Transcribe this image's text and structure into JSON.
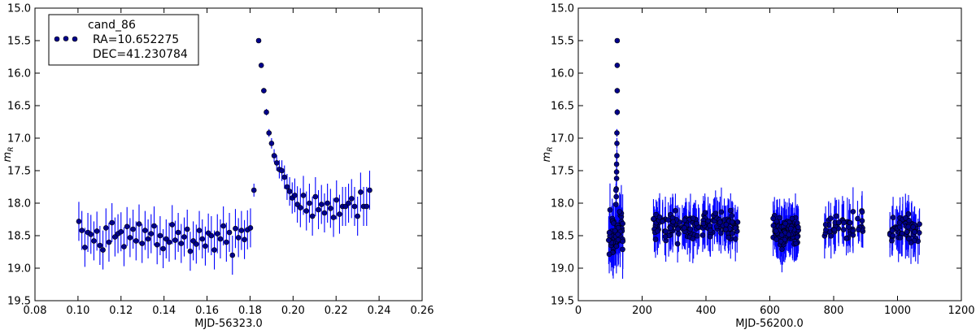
{
  "chart_data": [
    {
      "type": "scatter",
      "errorbars": true,
      "xlabel": "MJD-56323.0",
      "ylabel": "m",
      "ylabel_sub": "R",
      "xlim": [
        0.08,
        0.26
      ],
      "ylim": [
        19.5,
        15.0
      ],
      "y_inverted": true,
      "xticks": [
        "0.08",
        "0.10",
        "0.12",
        "0.14",
        "0.16",
        "0.18",
        "0.20",
        "0.22",
        "0.24",
        "0.26"
      ],
      "yticks": [
        "15.0",
        "15.5",
        "16.0",
        "16.5",
        "17.0",
        "17.5",
        "18.0",
        "18.5",
        "19.0",
        "19.5"
      ],
      "grid": false,
      "legend": {
        "placement": "top-left",
        "lines": [
          "cand_86",
          "RA=10.652275",
          "DEC=41.230784"
        ]
      },
      "marker_color": "#00008b",
      "errorbar_color": "#0000ff",
      "points": [
        [
          0.1004,
          18.28,
          0.3
        ],
        [
          0.1018,
          18.42,
          0.3
        ],
        [
          0.1032,
          18.68,
          0.3
        ],
        [
          0.1046,
          18.45,
          0.3
        ],
        [
          0.106,
          18.48,
          0.3
        ],
        [
          0.1074,
          18.58,
          0.3
        ],
        [
          0.1088,
          18.43,
          0.3
        ],
        [
          0.1102,
          18.65,
          0.3
        ],
        [
          0.1116,
          18.72,
          0.3
        ],
        [
          0.113,
          18.38,
          0.3
        ],
        [
          0.1144,
          18.6,
          0.3
        ],
        [
          0.1158,
          18.3,
          0.3
        ],
        [
          0.1172,
          18.52,
          0.3
        ],
        [
          0.1186,
          18.47,
          0.3
        ],
        [
          0.12,
          18.44,
          0.3
        ],
        [
          0.1214,
          18.67,
          0.3
        ],
        [
          0.1228,
          18.36,
          0.3
        ],
        [
          0.1242,
          18.53,
          0.3
        ],
        [
          0.1256,
          18.4,
          0.3
        ],
        [
          0.127,
          18.58,
          0.3
        ],
        [
          0.1284,
          18.32,
          0.3
        ],
        [
          0.1298,
          18.62,
          0.3
        ],
        [
          0.1312,
          18.42,
          0.3
        ],
        [
          0.1326,
          18.55,
          0.3
        ],
        [
          0.134,
          18.47,
          0.3
        ],
        [
          0.1354,
          18.35,
          0.3
        ],
        [
          0.1368,
          18.64,
          0.3
        ],
        [
          0.1382,
          18.5,
          0.3
        ],
        [
          0.1396,
          18.7,
          0.3
        ],
        [
          0.141,
          18.55,
          0.3
        ],
        [
          0.1424,
          18.6,
          0.3
        ],
        [
          0.1438,
          18.33,
          0.3
        ],
        [
          0.1452,
          18.57,
          0.3
        ],
        [
          0.1466,
          18.45,
          0.3
        ],
        [
          0.148,
          18.62,
          0.3
        ],
        [
          0.1494,
          18.52,
          0.3
        ],
        [
          0.1508,
          18.4,
          0.3
        ],
        [
          0.1522,
          18.74,
          0.3
        ],
        [
          0.1536,
          18.58,
          0.3
        ],
        [
          0.155,
          18.63,
          0.3
        ],
        [
          0.1564,
          18.42,
          0.3
        ],
        [
          0.1578,
          18.55,
          0.3
        ],
        [
          0.1592,
          18.66,
          0.3
        ],
        [
          0.1606,
          18.46,
          0.3
        ],
        [
          0.162,
          18.5,
          0.3
        ],
        [
          0.1634,
          18.72,
          0.3
        ],
        [
          0.1648,
          18.47,
          0.3
        ],
        [
          0.1662,
          18.55,
          0.3
        ],
        [
          0.1676,
          18.35,
          0.3
        ],
        [
          0.169,
          18.6,
          0.3
        ],
        [
          0.1704,
          18.45,
          0.3
        ],
        [
          0.1718,
          18.8,
          0.3
        ],
        [
          0.1732,
          18.39,
          0.3
        ],
        [
          0.1746,
          18.53,
          0.3
        ],
        [
          0.176,
          18.42,
          0.3
        ],
        [
          0.1774,
          18.56,
          0.3
        ],
        [
          0.1788,
          18.41,
          0.3
        ],
        [
          0.1802,
          18.38,
          0.3
        ],
        [
          0.1818,
          17.8,
          0.1
        ],
        [
          0.184,
          15.5,
          0.02
        ],
        [
          0.1852,
          15.88,
          0.03
        ],
        [
          0.1864,
          16.27,
          0.04
        ],
        [
          0.1876,
          16.6,
          0.05
        ],
        [
          0.1888,
          16.92,
          0.06
        ],
        [
          0.19,
          17.08,
          0.08
        ],
        [
          0.1912,
          17.27,
          0.1
        ],
        [
          0.1924,
          17.38,
          0.12
        ],
        [
          0.1936,
          17.48,
          0.14
        ],
        [
          0.1948,
          17.5,
          0.16
        ],
        [
          0.196,
          17.6,
          0.18
        ],
        [
          0.1972,
          17.75,
          0.2
        ],
        [
          0.1984,
          17.82,
          0.22
        ],
        [
          0.1996,
          17.92,
          0.24
        ],
        [
          0.2008,
          17.88,
          0.26
        ],
        [
          0.202,
          18.02,
          0.28
        ],
        [
          0.2034,
          18.07,
          0.3
        ],
        [
          0.2048,
          17.88,
          0.3
        ],
        [
          0.2062,
          18.12,
          0.3
        ],
        [
          0.2076,
          18.0,
          0.3
        ],
        [
          0.209,
          18.2,
          0.3
        ],
        [
          0.2104,
          17.9,
          0.3
        ],
        [
          0.2118,
          18.1,
          0.3
        ],
        [
          0.2132,
          18.02,
          0.3
        ],
        [
          0.2146,
          18.15,
          0.3
        ],
        [
          0.216,
          18.0,
          0.3
        ],
        [
          0.2174,
          18.08,
          0.3
        ],
        [
          0.2188,
          18.22,
          0.3
        ],
        [
          0.2202,
          17.95,
          0.3
        ],
        [
          0.2216,
          18.17,
          0.3
        ],
        [
          0.223,
          18.05,
          0.3
        ],
        [
          0.2244,
          18.05,
          0.3
        ],
        [
          0.2258,
          18.0,
          0.3
        ],
        [
          0.2272,
          17.93,
          0.3
        ],
        [
          0.2286,
          18.05,
          0.3
        ],
        [
          0.23,
          18.2,
          0.3
        ],
        [
          0.2314,
          17.83,
          0.3
        ],
        [
          0.2328,
          18.05,
          0.3
        ],
        [
          0.2342,
          18.05,
          0.3
        ],
        [
          0.2356,
          17.8,
          0.3
        ]
      ]
    },
    {
      "type": "scatter",
      "errorbars": true,
      "xlabel": "MJD-56200.0",
      "ylabel": "m",
      "ylabel_sub": "R",
      "xlim": [
        0,
        1200
      ],
      "ylim": [
        19.5,
        15.0
      ],
      "y_inverted": true,
      "xticks": [
        "0",
        "200",
        "400",
        "600",
        "800",
        "1000",
        "1200"
      ],
      "yticks": [
        "15.0",
        "15.5",
        "16.0",
        "16.5",
        "17.0",
        "17.5",
        "18.0",
        "18.5",
        "19.0",
        "19.5"
      ],
      "grid": false,
      "marker_color": "#00008b",
      "errorbar_color": "#0000ff",
      "peak_points": [
        [
          122,
          15.5,
          0.02
        ],
        [
          122,
          15.88,
          0.03
        ],
        [
          122,
          16.27,
          0.04
        ],
        [
          122,
          16.6,
          0.05
        ],
        [
          121,
          16.92,
          0.06
        ],
        [
          121,
          17.08,
          0.08
        ],
        [
          121,
          17.27,
          0.1
        ],
        [
          120,
          17.4,
          0.12
        ],
        [
          120,
          17.52,
          0.15
        ],
        [
          120,
          17.62,
          0.18
        ],
        [
          119,
          17.78,
          0.2
        ],
        [
          119,
          17.9,
          0.22
        ],
        [
          118,
          18.02,
          0.25
        ],
        [
          118,
          17.8,
          0.1
        ]
      ],
      "clusters": [
        {
          "x_range": [
            95,
            140
          ],
          "count": 70,
          "y_mean": 18.45,
          "y_spread": 0.22,
          "err": 0.35
        },
        {
          "x_range": [
            235,
            500
          ],
          "count": 150,
          "y_mean": 18.35,
          "y_spread": 0.15,
          "err": 0.3
        },
        {
          "x_range": [
            610,
            690
          ],
          "count": 90,
          "y_mean": 18.45,
          "y_spread": 0.15,
          "err": 0.3
        },
        {
          "x_range": [
            770,
            895
          ],
          "count": 45,
          "y_mean": 18.35,
          "y_spread": 0.15,
          "err": 0.3
        },
        {
          "x_range": [
            975,
            1070
          ],
          "count": 55,
          "y_mean": 18.42,
          "y_spread": 0.15,
          "err": 0.3
        }
      ]
    }
  ]
}
